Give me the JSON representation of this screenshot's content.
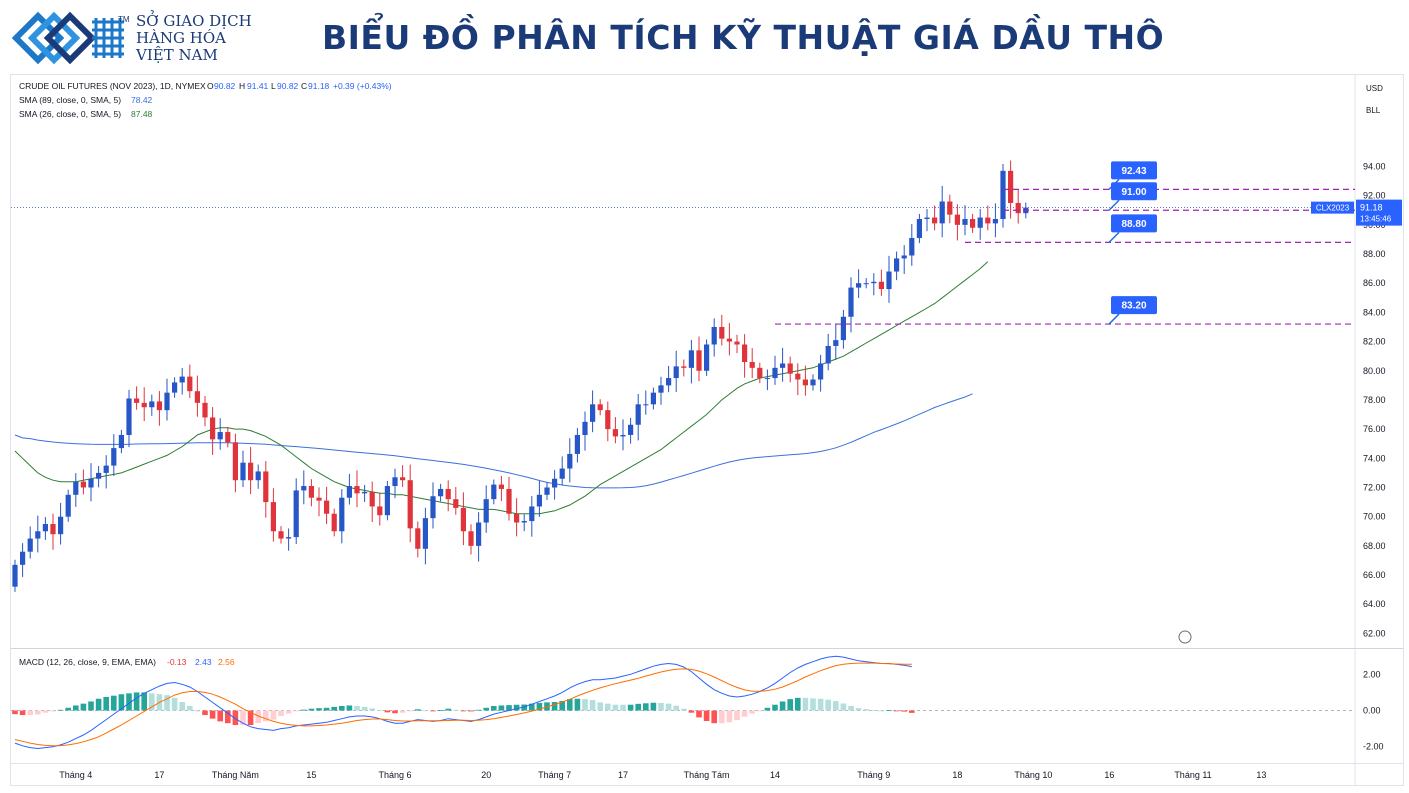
{
  "header": {
    "brand_lines": [
      "SỞ GIAO DỊCH",
      "HÀNG HÓA",
      "VIỆT NAM"
    ],
    "trademark": "TM",
    "title": "BIỂU ĐỒ PHÂN TÍCH KỸ THUẬT GIÁ DẦU THÔ"
  },
  "colors": {
    "up": "#2756c6",
    "down": "#e0343c",
    "sma89": "#3b6fe0",
    "sma26": "#2e7d32",
    "level": "#9c27b0",
    "macd": "#2962ff",
    "signal": "#ff6d00",
    "hist_pos_strong": "#26a69a",
    "hist_pos_weak": "#b2dfdb",
    "hist_neg_strong": "#ff5252",
    "hist_neg_weak": "#ffcdd2"
  },
  "chart_data": [
    {
      "type": "candlestick",
      "symbol_line": "CRUDE OIL FUTURES (NOV 2023), 1D, NYMEX",
      "ohlc_header": {
        "o_label": "O",
        "o": "90.82",
        "h_label": "H",
        "h": "91.41",
        "l_label": "L",
        "l": "90.82",
        "c_label": "C",
        "c": "91.18",
        "chg": "+0.39 (+0.43%)"
      },
      "indicators": [
        {
          "label": "SMA (89, close, 0, SMA, 5)",
          "value": "78.42"
        },
        {
          "label": "SMA (26, close, 0, SMA, 5)",
          "value": "87.48"
        }
      ],
      "currency_buttons": [
        "USD",
        "BLL"
      ],
      "ylim": [
        61,
        96.5
      ],
      "yticks": [
        "94.00",
        "92.00",
        "90.00",
        "88.00",
        "86.00",
        "84.00",
        "82.00",
        "80.00",
        "78.00",
        "76.00",
        "74.00",
        "72.00",
        "70.00",
        "68.00",
        "66.00",
        "64.00",
        "62.00"
      ],
      "xticks": [
        {
          "label": "Tháng 4",
          "i": 8
        },
        {
          "label": "17",
          "i": 19
        },
        {
          "label": "Tháng Năm",
          "i": 29
        },
        {
          "label": "15",
          "i": 39
        },
        {
          "label": "Tháng 6",
          "i": 50
        },
        {
          "label": "20",
          "i": 62
        },
        {
          "label": "Tháng 7",
          "i": 71
        },
        {
          "label": "17",
          "i": 80
        },
        {
          "label": "Tháng Tám",
          "i": 91
        },
        {
          "label": "14",
          "i": 100
        },
        {
          "label": "Tháng 9",
          "i": 113
        },
        {
          "label": "18",
          "i": 124
        },
        {
          "label": "Tháng 10",
          "i": 134
        },
        {
          "label": "16",
          "i": 144
        },
        {
          "label": "Tháng 11",
          "i": 155
        },
        {
          "label": "13",
          "i": 164
        }
      ],
      "price_label": {
        "symbol": "CLX2023",
        "price": "91.18",
        "countdown": "13:45:46",
        "value": 91.18
      },
      "levels": [
        {
          "value": 92.43,
          "label": "92.43"
        },
        {
          "value": 91.0,
          "label": "91.00"
        },
        {
          "value": 88.8,
          "label": "88.80"
        },
        {
          "value": 83.2,
          "label": "83.20"
        }
      ],
      "close": [
        66.7,
        67.6,
        68.5,
        69.0,
        69.5,
        68.8,
        70.0,
        71.5,
        72.4,
        72.0,
        72.6,
        73.0,
        73.5,
        74.7,
        75.6,
        78.1,
        77.8,
        77.5,
        77.9,
        77.3,
        78.5,
        79.2,
        79.6,
        78.6,
        77.8,
        76.8,
        75.3,
        75.8,
        75.1,
        72.5,
        73.7,
        72.5,
        73.1,
        71.0,
        69.0,
        68.5,
        68.6,
        71.8,
        72.1,
        71.3,
        71.1,
        70.2,
        69.0,
        71.3,
        72.1,
        71.6,
        71.7,
        70.7,
        70.1,
        72.1,
        72.7,
        72.5,
        69.2,
        67.8,
        69.9,
        71.4,
        71.9,
        71.2,
        70.6,
        69.0,
        68.0,
        69.6,
        71.2,
        72.2,
        71.9,
        70.2,
        69.6,
        69.7,
        70.7,
        71.5,
        72.0,
        72.6,
        73.3,
        74.3,
        75.6,
        76.5,
        77.7,
        77.3,
        76.0,
        75.5,
        75.6,
        76.3,
        77.7,
        77.7,
        78.5,
        79.0,
        79.5,
        80.3,
        80.2,
        81.4,
        80.0,
        81.8,
        83.0,
        82.2,
        82.0,
        81.8,
        80.6,
        80.2,
        79.5,
        79.5,
        80.2,
        80.5,
        79.8,
        79.4,
        79.0,
        79.4,
        80.5,
        81.7,
        82.1,
        83.7,
        85.7,
        86.0,
        86.0,
        86.1,
        85.6,
        86.8,
        87.7,
        87.9,
        89.1,
        90.4,
        90.5,
        90.1,
        91.6,
        90.7,
        90.0,
        90.4,
        89.8,
        90.5,
        90.1,
        90.4,
        93.7,
        91.5,
        90.8,
        91.18
      ],
      "sma89": [
        75.6,
        75.4,
        75.35,
        75.25,
        75.18,
        75.12,
        75.07,
        75.03,
        75.0,
        74.98,
        74.96,
        74.95,
        74.95,
        74.95,
        74.95,
        74.96,
        74.98,
        74.99,
        75.0,
        75.0,
        75.01,
        75.02,
        75.04,
        75.05,
        75.06,
        75.07,
        75.07,
        75.07,
        75.06,
        75.04,
        75.03,
        75.01,
        74.99,
        74.96,
        74.92,
        74.88,
        74.84,
        74.8,
        74.76,
        74.71,
        74.67,
        74.62,
        74.57,
        74.52,
        74.47,
        74.42,
        74.37,
        74.32,
        74.28,
        74.23,
        74.17,
        74.11,
        74.04,
        73.97,
        73.91,
        73.85,
        73.78,
        73.72,
        73.65,
        73.58,
        73.5,
        73.41,
        73.32,
        73.22,
        73.11,
        73.0,
        72.88,
        72.75,
        72.62,
        72.48,
        72.35,
        72.25,
        72.17,
        72.1,
        72.05,
        72.0,
        71.98,
        71.97,
        71.97,
        71.97,
        71.98,
        72.0,
        72.04,
        72.12,
        72.23,
        72.37,
        72.52,
        72.67,
        72.82,
        72.98,
        73.14,
        73.3,
        73.46,
        73.61,
        73.75,
        73.86,
        73.95,
        74.02,
        74.07,
        74.12,
        74.16,
        74.2,
        74.24,
        74.28,
        74.32,
        74.39,
        74.47,
        74.58,
        74.72,
        74.9,
        75.1,
        75.32,
        75.55,
        75.78,
        75.97,
        76.16,
        76.36,
        76.57,
        76.79,
        77.02,
        77.25,
        77.48,
        77.67,
        77.85,
        78.03,
        78.2,
        78.42
      ],
      "sma26": [
        74.5,
        74.0,
        73.5,
        73.0,
        72.7,
        72.5,
        72.4,
        72.4,
        72.4,
        72.5,
        72.6,
        72.7,
        72.8,
        72.9,
        73.0,
        73.2,
        73.4,
        73.6,
        73.8,
        74.0,
        74.2,
        74.5,
        74.8,
        75.2,
        75.6,
        75.8,
        76.0,
        76.1,
        76.1,
        76.0,
        76.0,
        75.9,
        75.7,
        75.5,
        75.2,
        74.9,
        74.5,
        74.1,
        73.7,
        73.3,
        73.0,
        72.7,
        72.4,
        72.2,
        72.0,
        71.9,
        71.8,
        71.7,
        71.6,
        71.6,
        71.5,
        71.5,
        71.4,
        71.3,
        71.2,
        71.1,
        71.0,
        70.9,
        70.8,
        70.7,
        70.6,
        70.5,
        70.5,
        70.5,
        70.4,
        70.3,
        70.2,
        70.2,
        70.2,
        70.2,
        70.3,
        70.4,
        70.6,
        70.8,
        71.1,
        71.4,
        71.8,
        72.2,
        72.5,
        72.8,
        73.1,
        73.4,
        73.7,
        74.0,
        74.3,
        74.6,
        75.0,
        75.4,
        75.8,
        76.2,
        76.6,
        77.0,
        77.5,
        78.0,
        78.4,
        78.8,
        79.1,
        79.3,
        79.5,
        79.6,
        79.7,
        79.8,
        79.9,
        80.0,
        80.1,
        80.2,
        80.4,
        80.6,
        80.8,
        81.0,
        81.3,
        81.6,
        81.9,
        82.2,
        82.5,
        82.8,
        83.1,
        83.4,
        83.7,
        84.0,
        84.3,
        84.6,
        85.0,
        85.4,
        85.8,
        86.2,
        86.6,
        87.0,
        87.48
      ]
    },
    {
      "type": "macd",
      "label": "MACD (12, 26, close, 9, EMA, EMA)",
      "values": [
        "-0.13",
        "2.43",
        "2.56"
      ],
      "ylim": [
        -2.9,
        3.4
      ],
      "yticks": [
        "2.00",
        "0.00",
        "-2.00"
      ],
      "macd": [
        -1.8,
        -1.95,
        -2.05,
        -2.1,
        -2.05,
        -2.0,
        -1.9,
        -1.75,
        -1.55,
        -1.35,
        -1.1,
        -0.8,
        -0.5,
        -0.2,
        0.1,
        0.4,
        0.7,
        0.95,
        1.15,
        1.35,
        1.5,
        1.55,
        1.45,
        1.3,
        1.05,
        0.75,
        0.45,
        0.15,
        -0.15,
        -0.45,
        -0.7,
        -0.9,
        -1.0,
        -1.05,
        -1.1,
        -1.0,
        -0.95,
        -0.85,
        -0.8,
        -0.75,
        -0.7,
        -0.65,
        -0.55,
        -0.45,
        -0.35,
        -0.3,
        -0.3,
        -0.35,
        -0.45,
        -0.6,
        -0.7,
        -0.7,
        -0.6,
        -0.5,
        -0.55,
        -0.6,
        -0.55,
        -0.45,
        -0.5,
        -0.55,
        -0.6,
        -0.5,
        -0.35,
        -0.2,
        -0.1,
        0.0,
        0.1,
        0.2,
        0.35,
        0.5,
        0.65,
        0.8,
        1.0,
        1.25,
        1.45,
        1.6,
        1.7,
        1.7,
        1.75,
        1.8,
        1.9,
        2.0,
        2.15,
        2.3,
        2.45,
        2.55,
        2.6,
        2.55,
        2.4,
        2.15,
        1.8,
        1.45,
        1.15,
        0.95,
        0.8,
        0.75,
        0.8,
        0.9,
        1.05,
        1.25,
        1.5,
        1.8,
        2.1,
        2.35,
        2.55,
        2.7,
        2.85,
        2.95,
        3.0,
        2.95,
        2.85,
        2.75,
        2.7,
        2.65,
        2.6,
        2.6,
        2.55,
        2.5,
        2.43
      ],
      "signal": [
        -1.6,
        -1.7,
        -1.8,
        -1.88,
        -1.93,
        -1.95,
        -1.94,
        -1.9,
        -1.83,
        -1.73,
        -1.6,
        -1.45,
        -1.25,
        -1.02,
        -0.8,
        -0.55,
        -0.3,
        -0.05,
        0.2,
        0.45,
        0.65,
        0.85,
        0.98,
        1.05,
        1.05,
        1.0,
        0.9,
        0.75,
        0.55,
        0.35,
        0.1,
        -0.1,
        -0.3,
        -0.45,
        -0.6,
        -0.7,
        -0.78,
        -0.82,
        -0.85,
        -0.85,
        -0.83,
        -0.8,
        -0.75,
        -0.7,
        -0.63,
        -0.55,
        -0.5,
        -0.47,
        -0.47,
        -0.5,
        -0.55,
        -0.58,
        -0.58,
        -0.57,
        -0.56,
        -0.57,
        -0.57,
        -0.55,
        -0.54,
        -0.54,
        -0.55,
        -0.54,
        -0.5,
        -0.45,
        -0.38,
        -0.3,
        -0.22,
        -0.13,
        -0.03,
        0.08,
        0.2,
        0.33,
        0.47,
        0.62,
        0.8,
        0.97,
        1.12,
        1.25,
        1.37,
        1.48,
        1.58,
        1.68,
        1.78,
        1.9,
        2.02,
        2.13,
        2.22,
        2.28,
        2.3,
        2.27,
        2.18,
        2.03,
        1.85,
        1.65,
        1.45,
        1.28,
        1.14,
        1.07,
        1.06,
        1.1,
        1.18,
        1.3,
        1.47,
        1.65,
        1.85,
        2.03,
        2.2,
        2.35,
        2.48,
        2.56,
        2.6,
        2.62,
        2.62,
        2.62,
        2.6,
        2.58,
        2.57,
        2.56,
        2.56
      ],
      "xticks_shared": true
    }
  ]
}
